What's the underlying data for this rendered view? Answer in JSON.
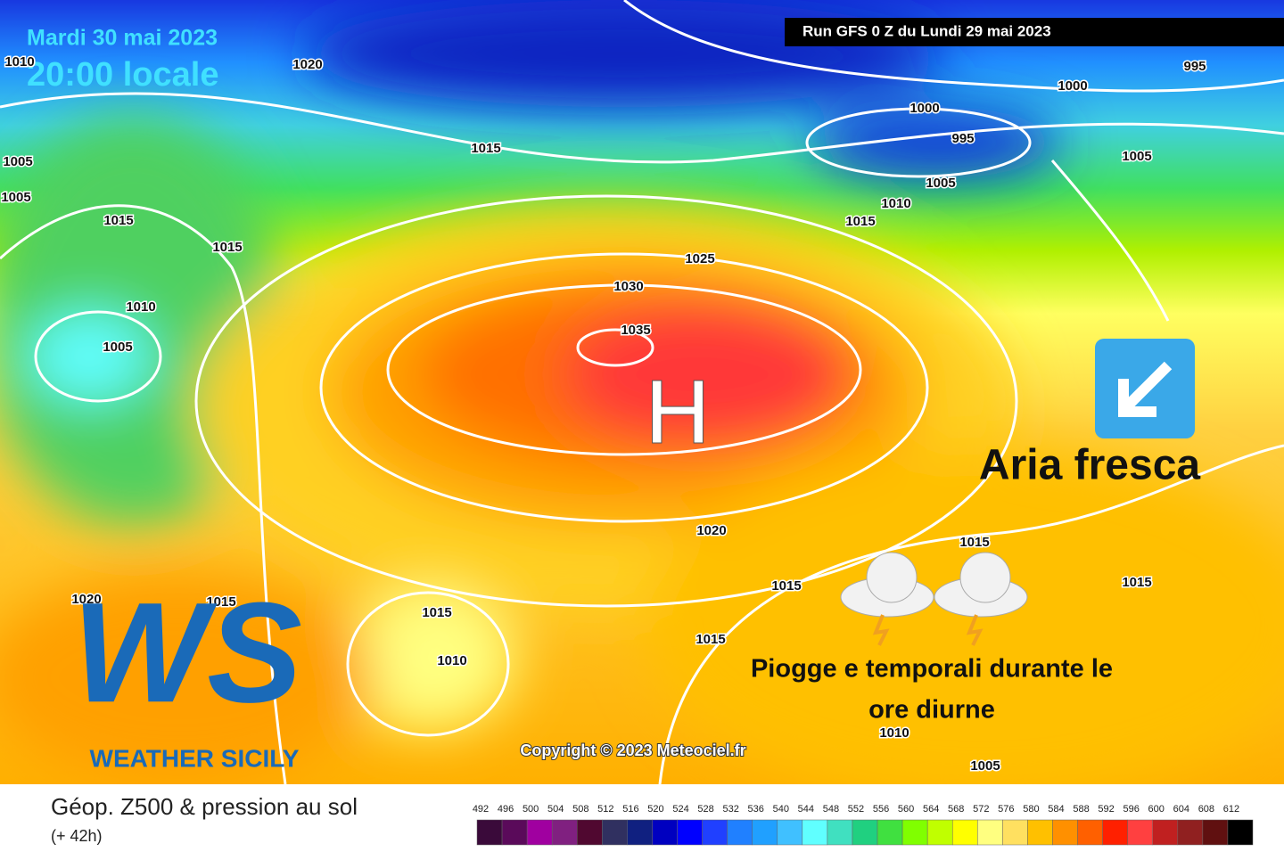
{
  "header": {
    "date": "Mardi 30 mai 2023",
    "time": "20:00 locale",
    "run": "Run GFS 0 Z du Lundi 29 mai 2023"
  },
  "isobars": [
    1010,
    1020,
    995,
    1000,
    1000,
    995,
    1005,
    1005,
    1015,
    1015,
    1010,
    1005,
    1010,
    1015,
    1005,
    1005,
    1015,
    1025,
    1030,
    1035,
    1020,
    1015,
    1015,
    1015,
    1015,
    1015,
    1010,
    1020,
    1015,
    1010,
    1005
  ],
  "annotations": {
    "high": "H",
    "cool_air": "Aria fresca",
    "rain_line1": "Piogge e temporali durante le",
    "rain_line2": "ore diurne"
  },
  "logo": {
    "mark": "WS",
    "name": "WEATHER SICILY"
  },
  "copyright": "Copyright © 2023 Meteociel.fr",
  "legend": {
    "title": "Géop. Z500 & pression au sol",
    "lead": "(+ 42h)",
    "scale": [
      492,
      496,
      500,
      504,
      508,
      512,
      516,
      520,
      524,
      528,
      532,
      536,
      540,
      544,
      548,
      552,
      556,
      560,
      564,
      568,
      572,
      576,
      580,
      584,
      588,
      592,
      596,
      600,
      604,
      608,
      612
    ],
    "colors": [
      "#3a0a3a",
      "#5a0a5a",
      "#a000a0",
      "#802080",
      "#500830",
      "#303060",
      "#102080",
      "#0000c0",
      "#0000ff",
      "#2040ff",
      "#2080ff",
      "#20a0ff",
      "#40c0ff",
      "#60ffff",
      "#40e0c0",
      "#20d080",
      "#40e040",
      "#80ff00",
      "#c0ff00",
      "#ffff00",
      "#ffff80",
      "#ffe060",
      "#ffc000",
      "#ff9000",
      "#ff6000",
      "#ff2000",
      "#ff4040",
      "#c02020",
      "#902020",
      "#601010",
      "#000000"
    ]
  }
}
